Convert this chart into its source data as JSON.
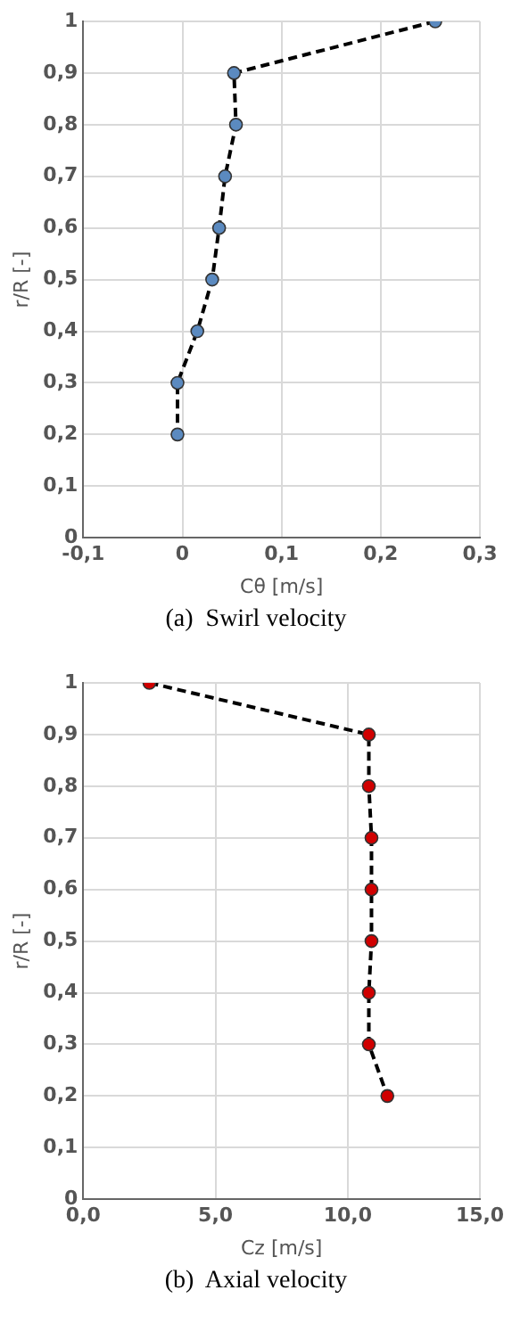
{
  "chart_data": [
    {
      "type": "line",
      "title": "(a)  Swirl velocity",
      "xlabel": "Cθ [m/s]",
      "ylabel": "r/R [-]",
      "marker": "circle",
      "line_style": "dashed",
      "grid": true,
      "series": [
        {
          "color": "#5b8ac0",
          "x": [
            0.255,
            0.052,
            0.054,
            0.043,
            0.037,
            0.03,
            0.015,
            -0.005,
            -0.005
          ],
          "values": [
            1,
            0.9,
            0.8,
            0.7,
            0.6,
            0.5,
            0.4,
            0.3,
            0.2
          ]
        }
      ],
      "xlim": [
        -0.1,
        0.3
      ],
      "xticks": [
        {
          "value": -0.1,
          "label": "-0,1"
        },
        {
          "value": 0,
          "label": "0"
        },
        {
          "value": 0.1,
          "label": "0,1"
        },
        {
          "value": 0.2,
          "label": "0,2"
        },
        {
          "value": 0.3,
          "label": "0,3"
        }
      ],
      "ylim": [
        0,
        1
      ],
      "yticks": [
        {
          "value": 0,
          "label": "0"
        },
        {
          "value": 0.1,
          "label": "0,1"
        },
        {
          "value": 0.2,
          "label": "0,2"
        },
        {
          "value": 0.3,
          "label": "0,3"
        },
        {
          "value": 0.4,
          "label": "0,4"
        },
        {
          "value": 0.5,
          "label": "0,5"
        },
        {
          "value": 0.6,
          "label": "0,6"
        },
        {
          "value": 0.7,
          "label": "0,7"
        },
        {
          "value": 0.8,
          "label": "0,8"
        },
        {
          "value": 0.9,
          "label": "0,9"
        },
        {
          "value": 1,
          "label": "1"
        }
      ]
    },
    {
      "type": "line",
      "title": "(b)  Axial velocity",
      "xlabel": "Cz [m/s]",
      "ylabel": "r/R [-]",
      "marker": "circle",
      "line_style": "dashed",
      "grid": true,
      "series": [
        {
          "color": "#d00000",
          "x": [
            2.5,
            10.8,
            10.8,
            10.9,
            10.9,
            10.9,
            10.8,
            10.8,
            11.5
          ],
          "values": [
            1,
            0.9,
            0.8,
            0.7,
            0.6,
            0.5,
            0.4,
            0.3,
            0.2
          ]
        }
      ],
      "xlim": [
        0,
        15
      ],
      "xticks": [
        {
          "value": 0,
          "label": "0,0"
        },
        {
          "value": 5,
          "label": "5,0"
        },
        {
          "value": 10,
          "label": "10,0"
        },
        {
          "value": 15,
          "label": "15,0"
        }
      ],
      "ylim": [
        0,
        1
      ],
      "yticks": [
        {
          "value": 0,
          "label": "0"
        },
        {
          "value": 0.1,
          "label": "0,1"
        },
        {
          "value": 0.2,
          "label": "0,2"
        },
        {
          "value": 0.3,
          "label": "0,3"
        },
        {
          "value": 0.4,
          "label": "0,4"
        },
        {
          "value": 0.5,
          "label": "0,5"
        },
        {
          "value": 0.6,
          "label": "0,6"
        },
        {
          "value": 0.7,
          "label": "0,7"
        },
        {
          "value": 0.8,
          "label": "0,8"
        },
        {
          "value": 0.9,
          "label": "0,9"
        },
        {
          "value": 1,
          "label": "1"
        }
      ]
    }
  ]
}
